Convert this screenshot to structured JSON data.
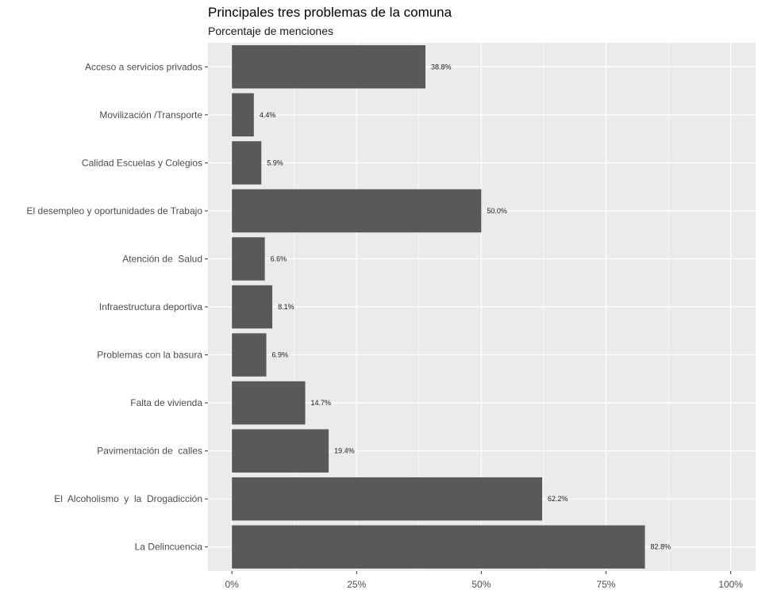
{
  "chart_data": {
    "type": "bar",
    "orientation": "horizontal",
    "title": "Principales tres problemas de la comuna",
    "subtitle": "Porcentaje de menciones",
    "xlabel": "",
    "ylabel": "",
    "categories": [
      "Acceso a servicios privados",
      "Movilización /Transporte",
      "Calidad Escuelas y Colegios",
      "El desempleo y oportunidades de Trabajo",
      "Atención de  Salud",
      "Infraestructura deportiva",
      "Problemas con la basura",
      "Falta de vivienda",
      "Pavimentación de  calles",
      "El  Alcoholismo  y  la  Drogadicción",
      "La Delincuencia"
    ],
    "values": [
      38.8,
      4.4,
      5.9,
      50.0,
      6.6,
      8.1,
      6.9,
      14.7,
      19.4,
      62.2,
      82.8
    ],
    "data_labels": [
      "38.8%",
      "4.4%",
      "5.9%",
      "50.0%",
      "6.6%",
      "8.1%",
      "6.9%",
      "14.7%",
      "19.4%",
      "62.2%",
      "82.8%"
    ],
    "x_ticks": [
      0,
      25,
      50,
      75,
      100
    ],
    "x_tick_labels": [
      "0%",
      "25%",
      "50%",
      "75%",
      "100%"
    ],
    "xlim": [
      -4.8,
      105
    ],
    "grid": true,
    "legend": "none",
    "colors": {
      "bar": "#595959",
      "panel_background": "#ebebeb",
      "grid": "#ffffff",
      "axis_text": "#4d4d4d"
    }
  }
}
